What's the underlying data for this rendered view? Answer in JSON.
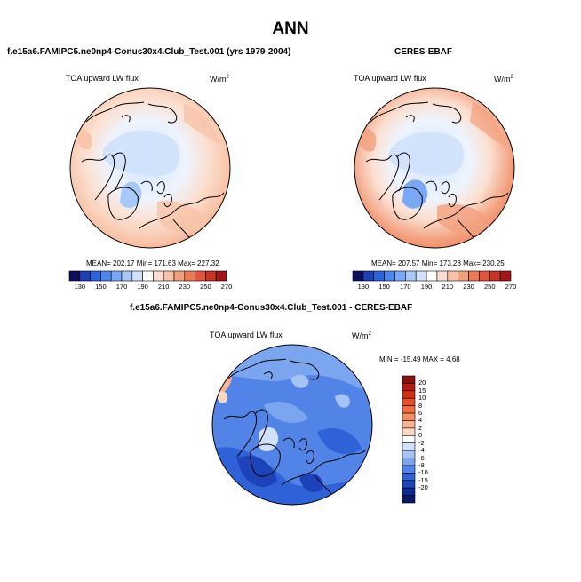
{
  "title": "ANN",
  "panels": {
    "model": {
      "title": "f.e15a6.FAMIPC5.ne0np4-Conus30x4.Club_Test.001 (yrs 1979-2004)",
      "variable": "TOA upward LW flux",
      "units_base": "W/m",
      "units_exp": "2",
      "stats_text": "MEAN= 202.17  Min= 171.63  Max= 227.32",
      "mean": 202.17,
      "min": 171.63,
      "max": 227.32
    },
    "obs": {
      "title": "CERES-EBAF",
      "variable": "TOA upward LW flux",
      "units_base": "W/m",
      "units_exp": "2",
      "stats_text": "MEAN= 207.57  Min= 173.28  Max= 230.25",
      "mean": 207.57,
      "min": 173.28,
      "max": 230.25
    },
    "diff": {
      "title": "f.e15a6.FAMIPC5.ne0np4-Conus30x4.Club_Test.001 - CERES-EBAF",
      "variable": "TOA upward LW flux",
      "units_base": "W/m",
      "units_exp": "2",
      "stats_text": "MIN = -15.49 MAX =   4.68",
      "min": -15.49,
      "max": 4.68
    }
  },
  "colorbar_abs": {
    "labels": [
      "130",
      "150",
      "170",
      "190",
      "210",
      "230",
      "250",
      "270"
    ],
    "colors": [
      "#08105e",
      "#1a3fb8",
      "#2c63d8",
      "#4c86ee",
      "#7aa8f5",
      "#a8c8f8",
      "#cfe1fb",
      "#ffffff",
      "#fbe0d2",
      "#f8c3a7",
      "#f3a07e",
      "#ec7b56",
      "#e2553a",
      "#c93322",
      "#a01616"
    ]
  },
  "colorbar_diff": {
    "labels": [
      "20",
      "15",
      "10",
      "8",
      "6",
      "4",
      "2",
      "0",
      "-2",
      "-4",
      "-6",
      "-8",
      "-10",
      "-15",
      "-20"
    ],
    "colors": [
      "#8a0f0f",
      "#b51a12",
      "#d42e17",
      "#e84d23",
      "#f26e3b",
      "#f59063",
      "#f7b394",
      "#fbd8c5",
      "#ffffff",
      "#d0e1fb",
      "#a4c3f6",
      "#7ca5ef",
      "#5283e6",
      "#2f61d8",
      "#1d43bb",
      "#0d2a92",
      "#061a66"
    ]
  }
}
